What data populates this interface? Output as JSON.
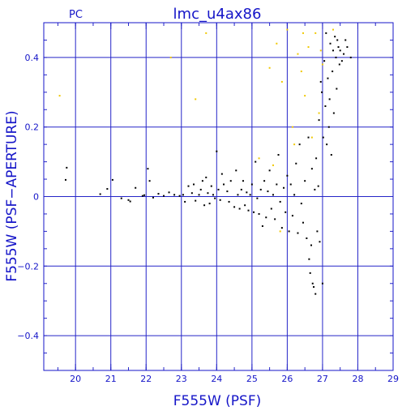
{
  "colors": {
    "axis": "#1515c8",
    "grid": "#2525c8",
    "points_black": "#000000",
    "points_yellow": "#f0c800",
    "background": "#ffffff"
  },
  "chart_data": {
    "type": "scatter",
    "title": "lmc_u4ax86",
    "corner_label": "PC",
    "xlabel": "F555W (PSF)",
    "ylabel": "F555W (PSF−APERTURE)",
    "xlim": [
      19.1,
      29.0
    ],
    "ylim": [
      -0.5,
      0.5
    ],
    "x_ticks": [
      20,
      21,
      22,
      23,
      24,
      25,
      26,
      27,
      28,
      29
    ],
    "y_ticks": [
      -0.4,
      -0.2,
      0,
      0.2,
      0.4
    ],
    "x_tick_labels": [
      "20",
      "21",
      "22",
      "23",
      "24",
      "25",
      "26",
      "27",
      "28",
      "29"
    ],
    "y_tick_labels": [
      "−0.4",
      "−0.2",
      "0",
      "0.2",
      "0.4"
    ],
    "grid": true,
    "series": [
      {
        "color": "#000000",
        "points": [
          [
            19.75,
            0.083
          ],
          [
            19.72,
            0.048
          ],
          [
            20.7,
            0.007
          ],
          [
            20.9,
            0.022
          ],
          [
            21.05,
            0.048
          ],
          [
            21.3,
            -0.005
          ],
          [
            21.5,
            -0.01
          ],
          [
            21.55,
            -0.014
          ],
          [
            21.7,
            0.025
          ],
          [
            21.9,
            0.002
          ],
          [
            21.95,
            0.004
          ],
          [
            22.05,
            0.08
          ],
          [
            22.1,
            0.045
          ],
          [
            22.2,
            -0.003
          ],
          [
            22.35,
            0.008
          ],
          [
            22.5,
            0.002
          ],
          [
            22.65,
            0.012
          ],
          [
            22.8,
            0.005
          ],
          [
            22.95,
            0.002
          ],
          [
            23.05,
            0.005
          ],
          [
            23.1,
            -0.015
          ],
          [
            23.2,
            0.03
          ],
          [
            23.3,
            0.01
          ],
          [
            23.35,
            0.035
          ],
          [
            23.4,
            -0.012
          ],
          [
            23.5,
            0.005
          ],
          [
            23.55,
            0.02
          ],
          [
            23.6,
            0.045
          ],
          [
            23.65,
            -0.025
          ],
          [
            23.7,
            0.055
          ],
          [
            23.75,
            0.01
          ],
          [
            23.8,
            -0.02
          ],
          [
            23.85,
            0.03
          ],
          [
            23.9,
            0.005
          ],
          [
            23.95,
            -0.005
          ],
          [
            24.0,
            0.13
          ],
          [
            24.05,
            0.02
          ],
          [
            24.1,
            -0.01
          ],
          [
            24.15,
            0.065
          ],
          [
            24.2,
            0.035
          ],
          [
            24.3,
            0.015
          ],
          [
            24.35,
            -0.015
          ],
          [
            24.4,
            0.045
          ],
          [
            24.5,
            -0.03
          ],
          [
            24.55,
            0.075
          ],
          [
            24.6,
            0.005
          ],
          [
            24.65,
            -0.035
          ],
          [
            24.7,
            0.02
          ],
          [
            24.75,
            0.045
          ],
          [
            24.8,
            -0.025
          ],
          [
            24.85,
            0.012
          ],
          [
            24.9,
            -0.04
          ],
          [
            24.95,
            0.005
          ],
          [
            25.0,
            0.035
          ],
          [
            25.05,
            -0.045
          ],
          [
            25.1,
            0.1
          ],
          [
            25.15,
            -0.005
          ],
          [
            25.2,
            -0.05
          ],
          [
            25.25,
            0.02
          ],
          [
            25.3,
            -0.085
          ],
          [
            25.35,
            0.045
          ],
          [
            25.4,
            -0.06
          ],
          [
            25.45,
            0.015
          ],
          [
            25.5,
            0.075
          ],
          [
            25.55,
            -0.035
          ],
          [
            25.6,
            0.005
          ],
          [
            25.65,
            -0.065
          ],
          [
            25.7,
            0.035
          ],
          [
            25.75,
            0.12
          ],
          [
            25.8,
            -0.015
          ],
          [
            25.85,
            -0.09
          ],
          [
            25.9,
            0.025
          ],
          [
            25.95,
            -0.045
          ],
          [
            26.0,
            0.06
          ],
          [
            26.05,
            -0.1
          ],
          [
            26.1,
            0.035
          ],
          [
            26.15,
            -0.055
          ],
          [
            26.2,
            0.005
          ],
          [
            26.25,
            0.095
          ],
          [
            26.3,
            -0.105
          ],
          [
            26.35,
            0.15
          ],
          [
            26.4,
            -0.02
          ],
          [
            26.45,
            -0.075
          ],
          [
            26.5,
            0.045
          ],
          [
            26.55,
            -0.12
          ],
          [
            26.6,
            0.17
          ],
          [
            26.62,
            -0.18
          ],
          [
            26.65,
            -0.22
          ],
          [
            26.68,
            -0.14
          ],
          [
            26.7,
            0.08
          ],
          [
            26.72,
            -0.25
          ],
          [
            26.75,
            -0.26
          ],
          [
            26.78,
            0.02
          ],
          [
            26.8,
            -0.28
          ],
          [
            26.82,
            0.11
          ],
          [
            26.85,
            -0.1
          ],
          [
            26.88,
            0.03
          ],
          [
            26.9,
            0.22
          ],
          [
            26.92,
            -0.13
          ],
          [
            26.95,
            0.33
          ],
          [
            26.98,
            0.3
          ],
          [
            27.0,
            -0.25
          ],
          [
            27.02,
            0.17
          ],
          [
            27.05,
            0.39
          ],
          [
            27.08,
            0.26
          ],
          [
            27.1,
            0.47
          ],
          [
            27.12,
            0.15
          ],
          [
            27.15,
            0.34
          ],
          [
            27.18,
            0.2
          ],
          [
            27.2,
            0.28
          ],
          [
            27.22,
            0.44
          ],
          [
            27.25,
            0.12
          ],
          [
            27.28,
            0.36
          ],
          [
            27.3,
            0.42
          ],
          [
            27.32,
            0.24
          ],
          [
            27.35,
            0.46
          ],
          [
            27.38,
            0.4
          ],
          [
            27.4,
            0.31
          ],
          [
            27.42,
            0.45
          ],
          [
            27.45,
            0.43
          ],
          [
            27.48,
            0.38
          ],
          [
            27.5,
            0.42
          ],
          [
            27.55,
            0.39
          ],
          [
            27.6,
            0.41
          ],
          [
            27.65,
            0.45
          ],
          [
            27.7,
            0.43
          ],
          [
            27.8,
            0.4
          ]
        ]
      },
      {
        "color": "#f0c800",
        "points": [
          [
            19.55,
            0.29
          ],
          [
            22.7,
            0.4
          ],
          [
            23.4,
            0.28
          ],
          [
            23.7,
            0.47
          ],
          [
            25.2,
            0.11
          ],
          [
            25.5,
            0.37
          ],
          [
            25.7,
            0.44
          ],
          [
            25.85,
            0.33
          ],
          [
            26.0,
            0.48
          ],
          [
            26.15,
            0.2
          ],
          [
            26.3,
            0.41
          ],
          [
            26.4,
            0.36
          ],
          [
            26.5,
            0.29
          ],
          [
            26.6,
            0.43
          ],
          [
            26.7,
            0.17
          ],
          [
            26.8,
            0.47
          ],
          [
            26.9,
            0.24
          ],
          [
            27.0,
            0.38
          ],
          [
            27.3,
            0.48
          ],
          [
            25.6,
            0.09
          ],
          [
            25.8,
            -0.1
          ],
          [
            26.2,
            0.15
          ],
          [
            26.45,
            0.47
          ],
          [
            26.95,
            0.42
          ]
        ]
      }
    ]
  }
}
